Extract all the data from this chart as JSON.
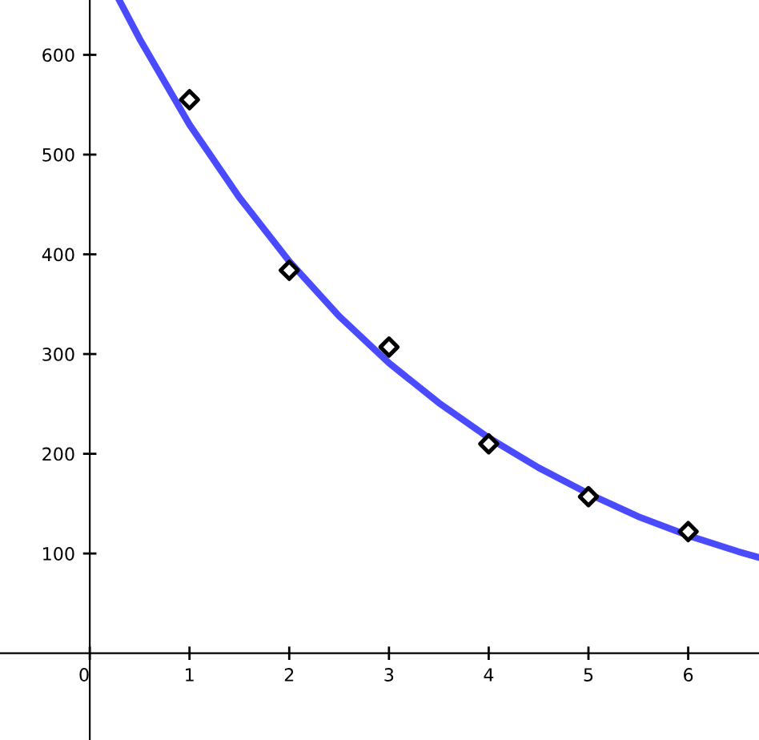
{
  "chart_data": {
    "type": "scatter",
    "xlim": [
      -0.9,
      6.71
    ],
    "ylim": [
      -87,
      655
    ],
    "xticks": [
      0,
      1,
      2,
      3,
      4,
      5,
      6
    ],
    "yticks": [
      100,
      200,
      300,
      400,
      500,
      600
    ],
    "grid": false,
    "legend": false,
    "series": [
      {
        "color": "#000000",
        "marker": "diamond",
        "x": [
          1,
          2,
          3,
          4,
          5,
          6
        ],
        "values": [
          555,
          384,
          307,
          210,
          157,
          122
        ]
      },
      {
        "type": "line",
        "color": "#4a4aff",
        "marker": "none",
        "line_style": "solid",
        "x": [
          0.3,
          0.5,
          1,
          1.5,
          2,
          2.5,
          3,
          3.5,
          4,
          4.5,
          5,
          5.5,
          6,
          6.5,
          6.71
        ],
        "values": [
          654,
          616,
          530,
          457,
          393,
          338,
          291,
          251,
          216,
          186,
          160,
          137,
          118,
          102,
          96
        ]
      }
    ]
  }
}
